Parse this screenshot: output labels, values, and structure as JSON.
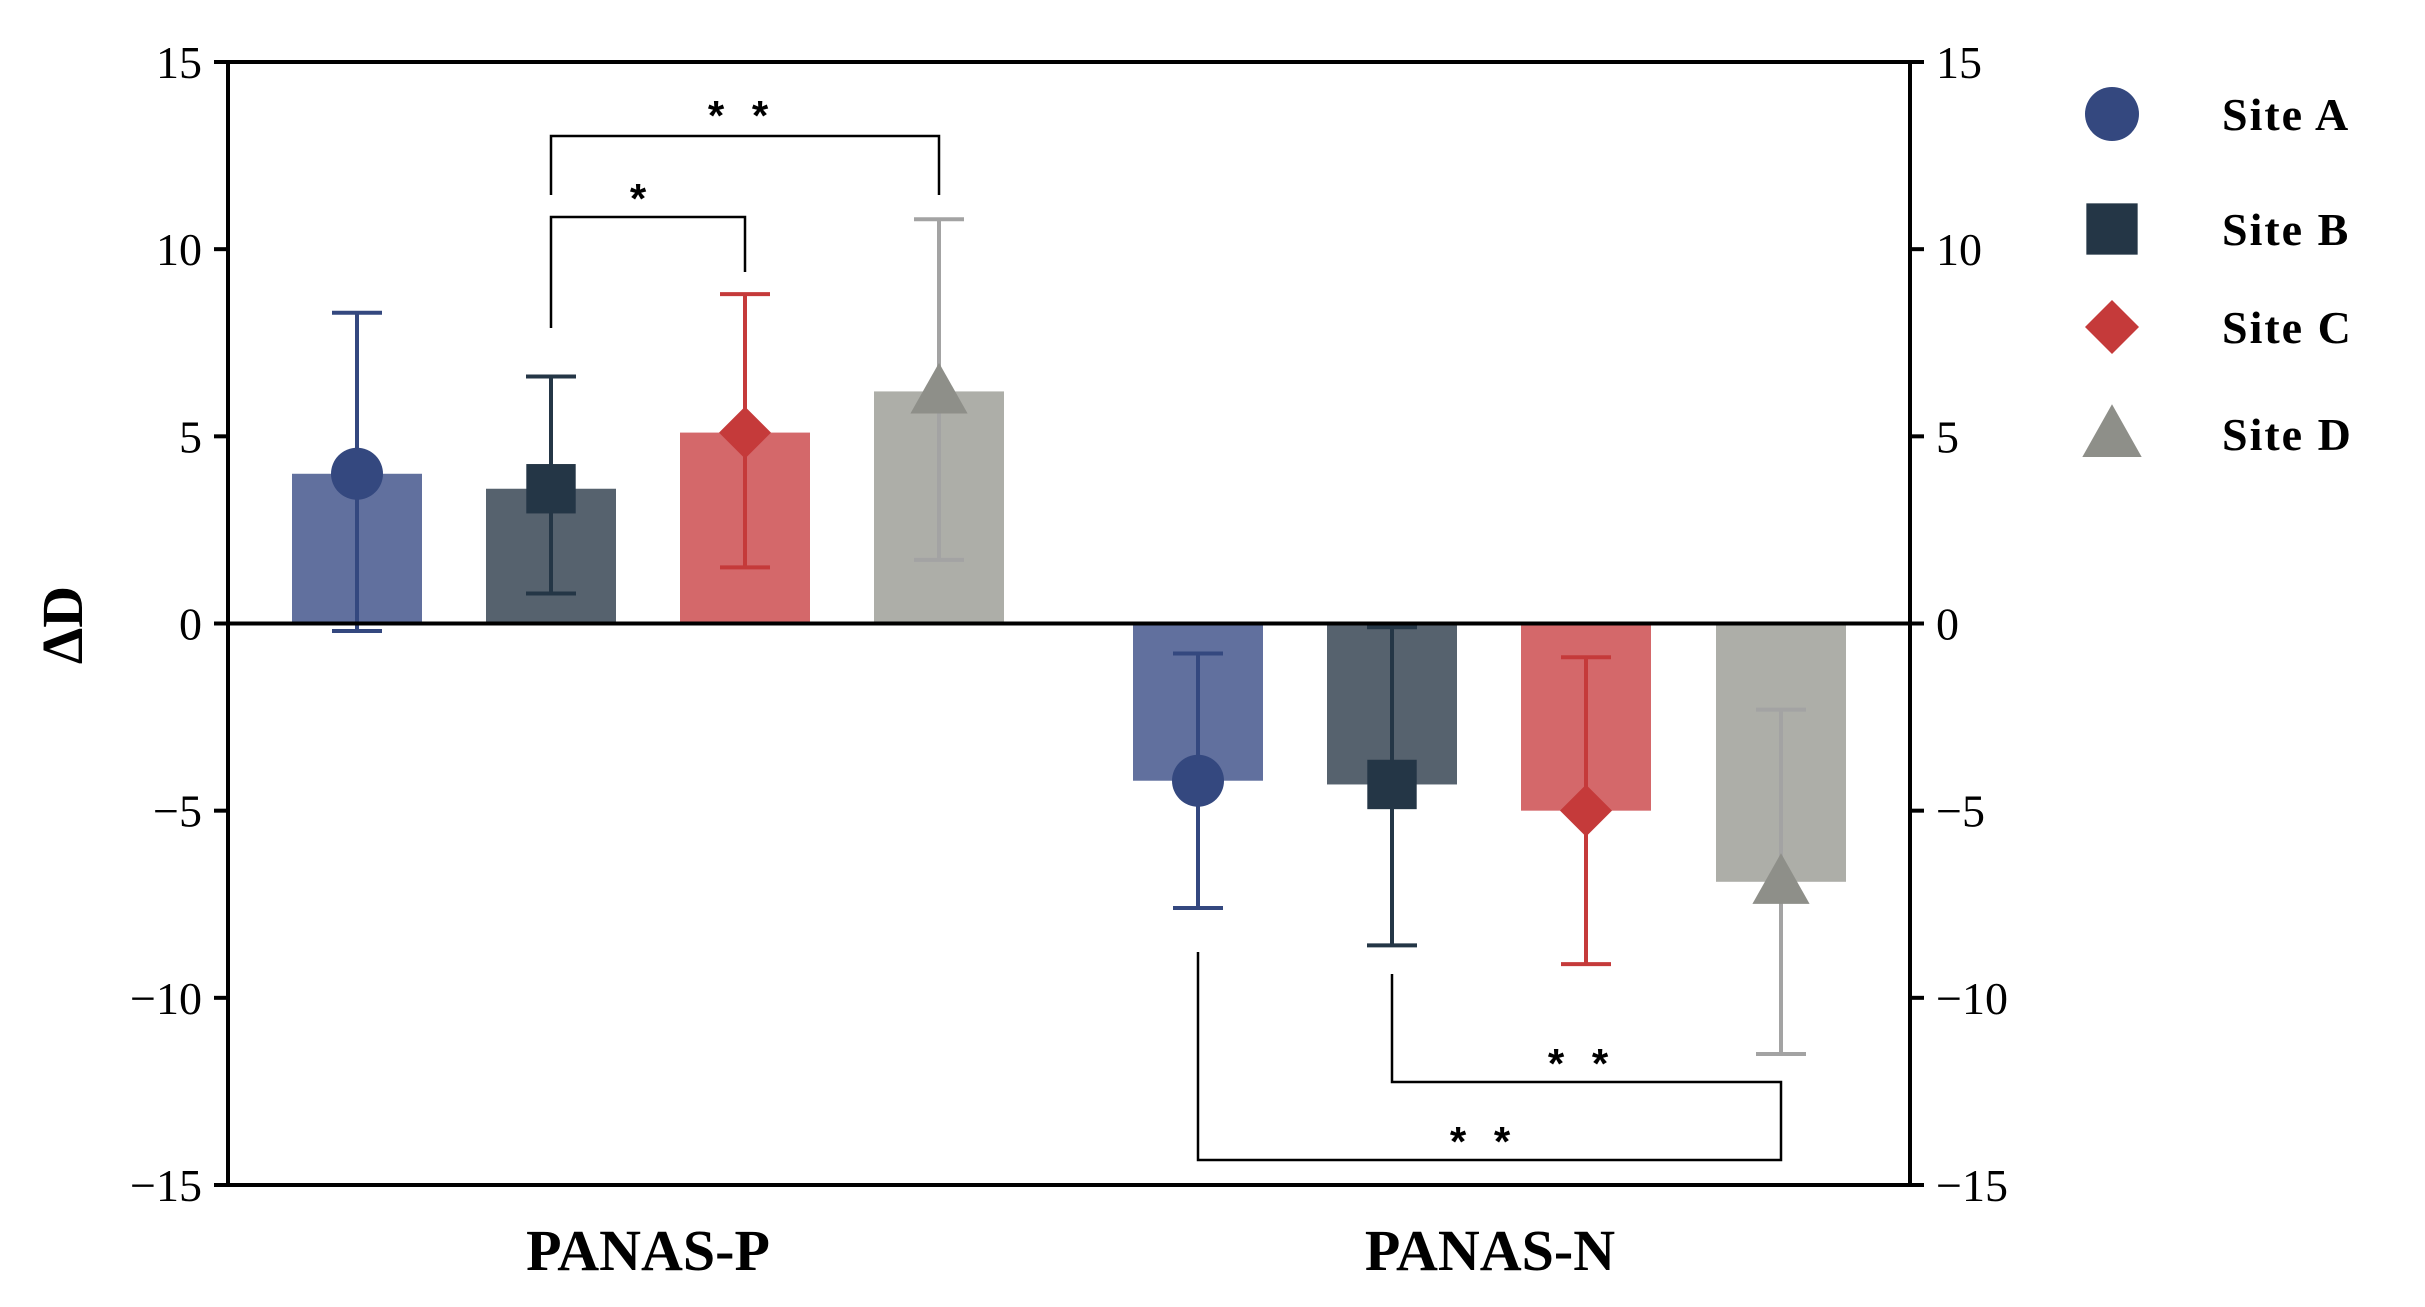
{
  "chart_data": {
    "type": "bar",
    "title": "",
    "xlabel": "",
    "ylabel": "ΔD",
    "ylim": [
      -15,
      15
    ],
    "yticks": [
      {
        "value": 15,
        "label": "15"
      },
      {
        "value": 10,
        "label": "10"
      },
      {
        "value": 5,
        "label": "5"
      },
      {
        "value": 0,
        "label": "0"
      },
      {
        "value": -5,
        "label": "−5"
      },
      {
        "value": -10,
        "label": "−10"
      },
      {
        "value": -15,
        "label": "−15"
      }
    ],
    "categories": [
      "PANAS-P",
      "PANAS-N"
    ],
    "legend_position": "right",
    "series": [
      {
        "name": "Site A",
        "marker": "circle",
        "bar_color": "#61709E",
        "marker_color": "#34487F",
        "error_color": "#34487F",
        "values": [
          4.0,
          -4.2
        ],
        "err_low": [
          -0.2,
          -7.6
        ],
        "err_high": [
          8.3,
          -0.8
        ]
      },
      {
        "name": "Site B",
        "marker": "square",
        "bar_color": "#56626E",
        "marker_color": "#243646",
        "error_color": "#243646",
        "values": [
          3.6,
          -4.3
        ],
        "err_low": [
          0.8,
          -8.6
        ],
        "err_high": [
          6.6,
          -0.1
        ]
      },
      {
        "name": "Site C",
        "marker": "diamond",
        "bar_color": "#D4686A",
        "marker_color": "#C53A3A",
        "error_color": "#C53A3A",
        "values": [
          5.1,
          -5.0
        ],
        "err_low": [
          1.5,
          -9.1
        ],
        "err_high": [
          8.8,
          -0.9
        ]
      },
      {
        "name": "Site D",
        "marker": "triangle",
        "bar_color": "#ADAEA8",
        "marker_color": "#8E8F89",
        "error_color": "#A3A3A3",
        "values": [
          6.2,
          -6.9
        ],
        "err_low": [
          1.7,
          -11.5
        ],
        "err_high": [
          10.8,
          -2.3
        ]
      }
    ],
    "significance": [
      {
        "category": 0,
        "from": 1,
        "to": 2,
        "label": "*"
      },
      {
        "category": 0,
        "from": 1,
        "to": 3,
        "label": "* *"
      },
      {
        "category": 1,
        "from": 1,
        "to": 3,
        "label": "* *"
      },
      {
        "category": 1,
        "from": 0,
        "to": 3,
        "label": "* *"
      }
    ]
  }
}
